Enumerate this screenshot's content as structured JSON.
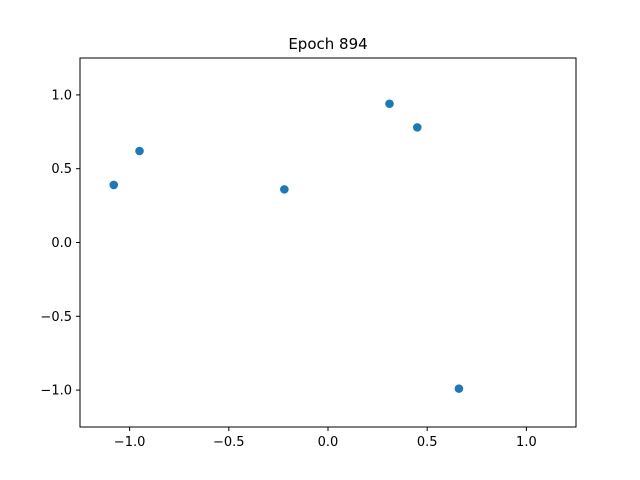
{
  "chart_data": {
    "type": "scatter",
    "title": "Epoch 894",
    "xlabel": "",
    "ylabel": "",
    "xlim": [
      -1.25,
      1.25
    ],
    "ylim": [
      -1.25,
      1.25
    ],
    "xticks": [
      -1.0,
      -0.5,
      0.0,
      0.5,
      1.0
    ],
    "yticks": [
      -1.0,
      -0.5,
      0.0,
      0.5,
      1.0
    ],
    "xtick_labels": [
      "−1.0",
      "−0.5",
      "0.0",
      "0.5",
      "1.0"
    ],
    "ytick_labels": [
      "−1.0",
      "−0.5",
      "0.0",
      "0.5",
      "1.0"
    ],
    "grid": false,
    "marker_color": "#1f77b4",
    "series": [
      {
        "x": [
          -1.08,
          -0.95,
          -0.22,
          0.31,
          0.45,
          0.66
        ],
        "y": [
          0.39,
          0.62,
          0.36,
          0.94,
          0.78,
          -0.99
        ]
      }
    ]
  }
}
